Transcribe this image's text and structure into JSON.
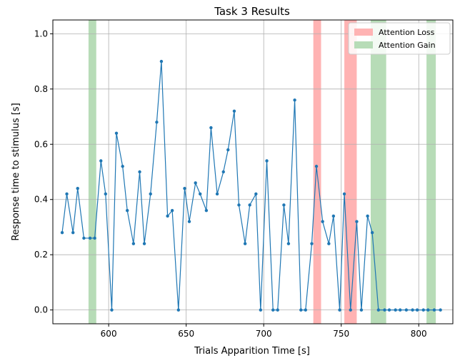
{
  "chart_data": {
    "type": "line",
    "title": "Task 3 Results",
    "xlabel": "Trials Apparition Time [s]",
    "ylabel": "Response time to stimulus [s]",
    "xlim": [
      564,
      822
    ],
    "ylim": [
      -0.05,
      1.05
    ],
    "xticks": [
      600,
      650,
      700,
      750,
      800
    ],
    "yticks": [
      0.0,
      0.2,
      0.4,
      0.6,
      0.8,
      1.0
    ],
    "xtick_labels": [
      "600",
      "650",
      "700",
      "750",
      "800"
    ],
    "ytick_labels": [
      "0.0",
      "0.2",
      "0.4",
      "0.6",
      "0.8",
      "1.0"
    ],
    "grid": true,
    "legend_position": "top-right",
    "series": [
      {
        "name": "",
        "color": "#1f77b4",
        "x": [
          570,
          573,
          577,
          580,
          584,
          588,
          591,
          595,
          598,
          602,
          605,
          609,
          612,
          616,
          620,
          623,
          627,
          631,
          634,
          638,
          641,
          645,
          649,
          652,
          656,
          659,
          663,
          666,
          670,
          674,
          677,
          681,
          684,
          688,
          691,
          695,
          698,
          702,
          706,
          709,
          713,
          716,
          720,
          724,
          727,
          731,
          734,
          738,
          742,
          745,
          749,
          752,
          756,
          760,
          763,
          767,
          770,
          774,
          778,
          781,
          785,
          788,
          792,
          796,
          799,
          803,
          806,
          810,
          814
        ],
        "y": [
          0.28,
          0.42,
          0.28,
          0.44,
          0.26,
          0.26,
          0.26,
          0.54,
          0.42,
          0.0,
          0.64,
          0.52,
          0.36,
          0.24,
          0.5,
          0.24,
          0.42,
          0.68,
          0.9,
          0.34,
          0.36,
          0.0,
          0.44,
          0.32,
          0.46,
          0.42,
          0.36,
          0.66,
          0.42,
          0.5,
          0.58,
          0.72,
          0.38,
          0.24,
          0.38,
          0.42,
          0.0,
          0.54,
          0.0,
          0.0,
          0.38,
          0.24,
          0.76,
          0.0,
          0.0,
          0.24,
          0.52,
          0.32,
          0.24,
          0.34,
          0.0,
          0.42,
          0.0,
          0.32,
          0.0,
          0.34,
          0.28,
          0.0,
          0.0,
          0.0,
          0.0,
          0.0,
          0.0,
          0.0,
          0.0,
          0.0,
          0.0,
          0.0,
          0.0
        ]
      }
    ],
    "spans": [
      {
        "label": "Attention Loss",
        "color": "#ffb3b3",
        "ranges": [
          [
            732,
            737
          ],
          [
            752,
            760
          ]
        ]
      },
      {
        "label": "Attention Gain",
        "color": "#b7dcb7",
        "ranges": [
          [
            587,
            592
          ],
          [
            769,
            779
          ],
          [
            805,
            811
          ]
        ]
      }
    ],
    "legend": [
      {
        "label": "Attention Loss",
        "color": "#ffb3b3"
      },
      {
        "label": "Attention Gain",
        "color": "#b7dcb7"
      }
    ]
  }
}
